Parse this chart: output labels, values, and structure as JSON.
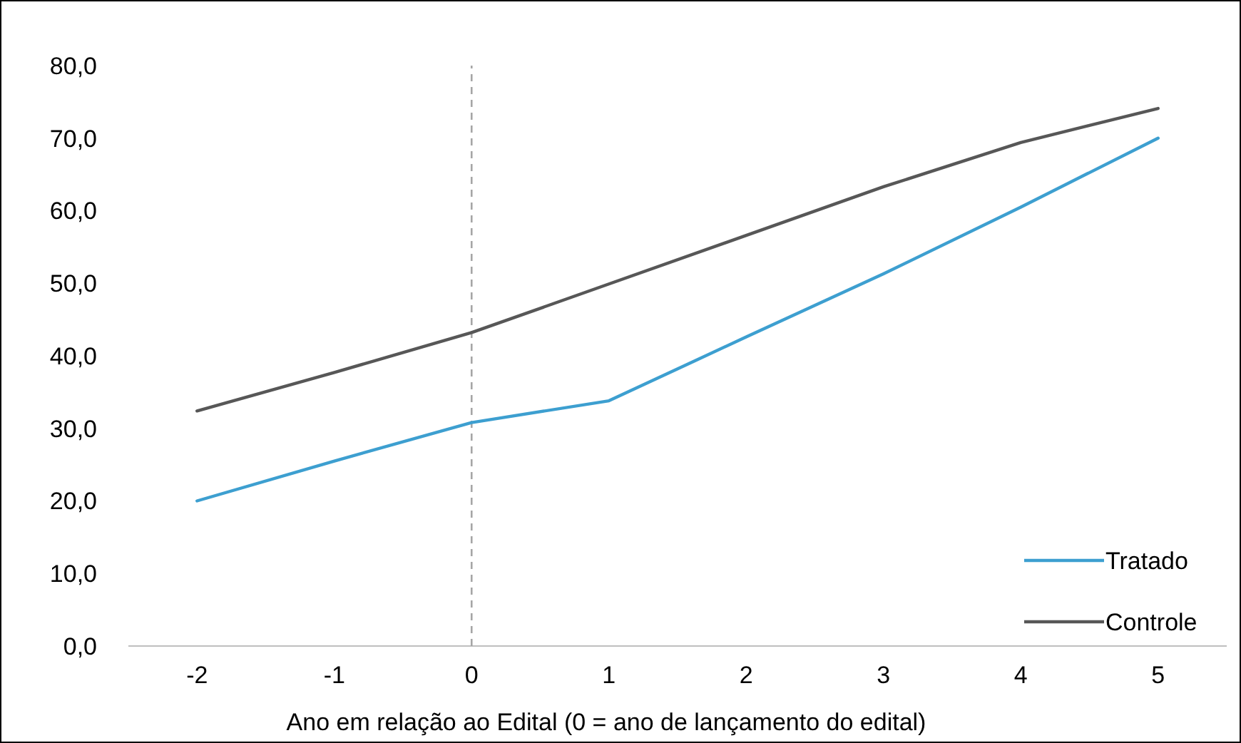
{
  "chart_data": {
    "type": "line",
    "xlabel": "Ano em relação ao Edital (0 = ano de lançamento do edital)",
    "categories": [
      "-2",
      "-1",
      "0",
      "1",
      "2",
      "3",
      "4",
      "5"
    ],
    "series": [
      {
        "name": "Tratado",
        "color": "#3d9fd0",
        "values": [
          20.0,
          25.5,
          30.8,
          33.8,
          42.6,
          51.3,
          60.5,
          70.0
        ]
      },
      {
        "name": "Controle",
        "color": "#575757",
        "values": [
          32.4,
          37.7,
          43.2,
          49.9,
          56.6,
          63.3,
          69.4,
          74.1
        ]
      }
    ],
    "ylim": [
      0,
      80
    ],
    "yticks": [
      {
        "value": 0,
        "label": "0,0"
      },
      {
        "value": 10,
        "label": "10,0"
      },
      {
        "value": 20,
        "label": "20,0"
      },
      {
        "value": 30,
        "label": "30,0"
      },
      {
        "value": 40,
        "label": "40,0"
      },
      {
        "value": 50,
        "label": "50,0"
      },
      {
        "value": 60,
        "label": "60,0"
      },
      {
        "value": 70,
        "label": "70,0"
      },
      {
        "value": 80,
        "label": "80,0"
      }
    ],
    "ref_lines": [
      {
        "axis": "x",
        "value": "0",
        "color": "#a6a6a6",
        "line_style": "dashed"
      }
    ],
    "grid": false,
    "legend": "bottom right",
    "marker": "none",
    "line_style": "solid"
  }
}
